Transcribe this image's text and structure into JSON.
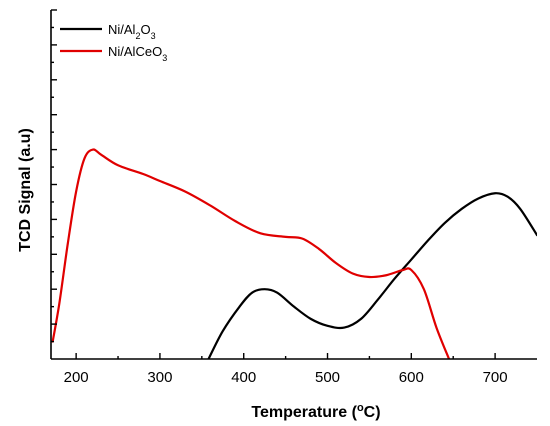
{
  "chart_data": {
    "type": "line",
    "title": "",
    "xlabel": "Temperature (",
    "xlabel_sup": "o",
    "xlabel_end": "C)",
    "ylabel": "TCD Signal (a.u)",
    "xlim": [
      170,
      750
    ],
    "ylim": [
      0,
      100
    ],
    "xticks": [
      200,
      300,
      400,
      500,
      600,
      700
    ],
    "x_tick_labels": [
      "200",
      "300",
      "400",
      "500",
      "600",
      "700"
    ],
    "y_tick_labels_shown": false,
    "grid": false,
    "legend_position": "top-left",
    "series": [
      {
        "name": "Ni/Al2O3",
        "legend_parts": [
          {
            "text": "Ni/Al",
            "sub": false
          },
          {
            "text": "2",
            "sub": true
          },
          {
            "text": "O",
            "sub": false
          },
          {
            "text": "3",
            "sub": true
          }
        ],
        "color": "#000000",
        "x": [
          358,
          375,
          395,
          410,
          425,
          440,
          460,
          480,
          500,
          520,
          540,
          560,
          580,
          600,
          620,
          640,
          660,
          680,
          700,
          715,
          730,
          750
        ],
        "y": [
          0,
          8,
          15,
          19,
          20,
          19,
          15,
          11.5,
          9.5,
          9,
          11.5,
          17,
          23,
          28.5,
          34,
          39,
          43,
          46,
          47.5,
          46.5,
          43,
          35.5
        ]
      },
      {
        "name": "Ni/AlCeO3",
        "legend_parts": [
          {
            "text": "Ni/AlCeO",
            "sub": false
          },
          {
            "text": "3",
            "sub": true
          }
        ],
        "color": "#e00000",
        "x": [
          172,
          180,
          190,
          200,
          210,
          220,
          230,
          250,
          280,
          300,
          330,
          360,
          390,
          420,
          450,
          470,
          490,
          510,
          530,
          550,
          570,
          590,
          600,
          615,
          630,
          645
        ],
        "y": [
          5,
          16,
          33,
          48,
          57.5,
          60,
          58.5,
          55.5,
          53,
          51,
          48,
          44,
          39.5,
          36,
          35,
          34.5,
          31.5,
          27.5,
          24.5,
          23.5,
          24,
          25.5,
          25.5,
          20,
          9,
          0
        ]
      }
    ]
  }
}
